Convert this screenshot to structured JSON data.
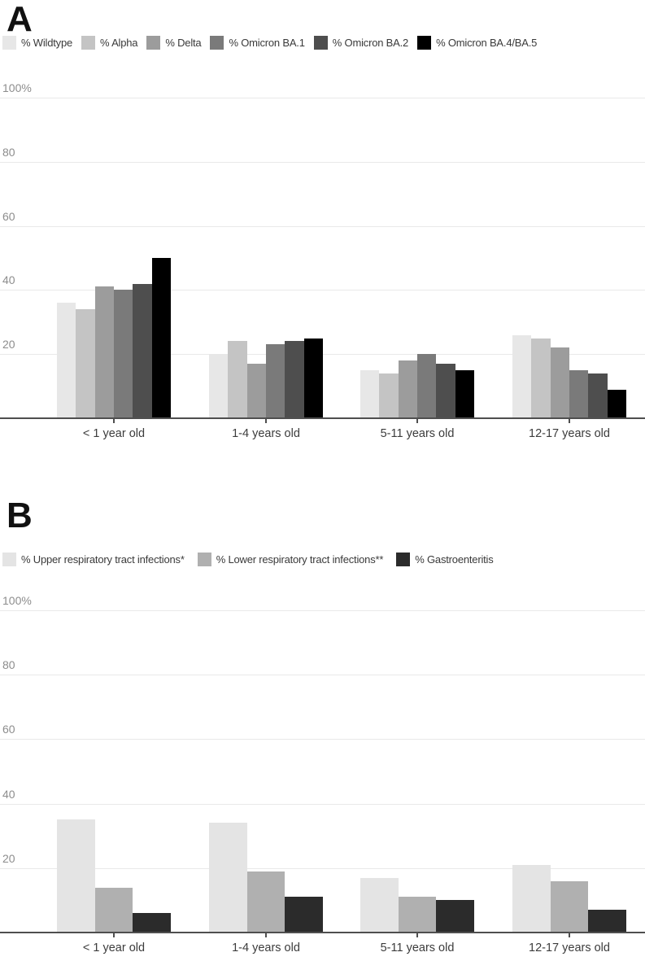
{
  "chart_data": [
    {
      "panel": "A",
      "type": "bar",
      "categories": [
        "< 1 year old",
        "1-4 years old",
        "5-11 years old",
        "12-17 years old"
      ],
      "series": [
        {
          "name": "% Wildtype",
          "color": "#e7e7e7",
          "values": [
            36,
            20,
            15,
            26
          ]
        },
        {
          "name": "% Alpha",
          "color": "#c4c4c4",
          "values": [
            34,
            24,
            14,
            25
          ]
        },
        {
          "name": "% Delta",
          "color": "#9c9c9c",
          "values": [
            41,
            17,
            18,
            22
          ]
        },
        {
          "name": "% Omicron BA.1",
          "color": "#7a7a7a",
          "values": [
            40,
            23,
            20,
            15
          ]
        },
        {
          "name": "% Omicron BA.2",
          "color": "#4e4e4e",
          "values": [
            42,
            24,
            17,
            14
          ]
        },
        {
          "name": "% Omicron BA.4/BA.5",
          "color": "#000000",
          "values": [
            50,
            25,
            15,
            9
          ]
        }
      ],
      "ylim": [
        0,
        100
      ],
      "ytick_values": [
        100,
        80,
        60,
        40,
        20
      ],
      "ytick_labels": [
        "100%",
        "80",
        "60",
        "40",
        "20"
      ],
      "xlabel": "",
      "ylabel": "",
      "grid": true,
      "legend_position": "top"
    },
    {
      "panel": "B",
      "type": "bar",
      "categories": [
        "< 1 year old",
        "1-4 years old",
        "5-11 years old",
        "12-17 years old"
      ],
      "series": [
        {
          "name": "% Upper respiratory tract infections*",
          "color": "#e4e4e4",
          "values": [
            35,
            34,
            17,
            21
          ]
        },
        {
          "name": "% Lower respiratory tract infections**",
          "color": "#b0b0b0",
          "values": [
            14,
            19,
            11,
            16
          ]
        },
        {
          "name": "% Gastroenteritis",
          "color": "#2b2b2b",
          "values": [
            6,
            11,
            10,
            7
          ]
        }
      ],
      "ylim": [
        0,
        100
      ],
      "ytick_values": [
        100,
        80,
        60,
        40,
        20
      ],
      "ytick_labels": [
        "100%",
        "80",
        "60",
        "40",
        "20"
      ],
      "xlabel": "",
      "ylabel": "",
      "grid": true,
      "legend_position": "top"
    }
  ],
  "style": {
    "background": "#ffffff",
    "gridline_color": "#e9e9e9",
    "axis_line_color": "#4f4f4f",
    "ytick_label_color": "#8d8d8d",
    "xtick_label_color": "#3c3c3c",
    "panel_label_color": "#111111",
    "legend_label_color": "#3a3a3a"
  }
}
